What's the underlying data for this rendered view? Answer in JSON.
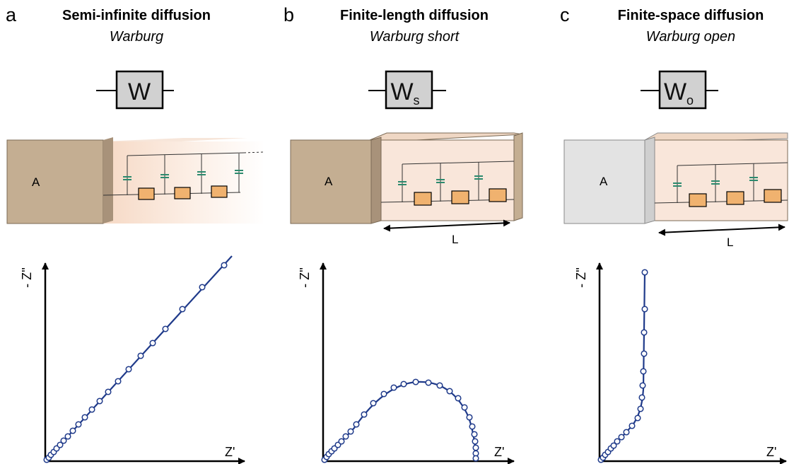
{
  "panels": [
    {
      "letter": "a",
      "title": "Semi-infinite diffusion",
      "subtitle": "Warburg",
      "element": {
        "symbol": "W",
        "subscript": ""
      },
      "block": {
        "electrode_label": "A",
        "electrode_color": "#c4ae92",
        "electrolyte_color": "#f9e6da"
      },
      "plot": {
        "ylabel": "- Z''",
        "xlabel": "Z'",
        "shape": "straight 45-degree line"
      }
    },
    {
      "letter": "b",
      "title": "Finite-length diffusion",
      "subtitle": "Warburg short",
      "element": {
        "symbol": "W",
        "subscript": "s"
      },
      "block": {
        "electrode_label": "A",
        "length_label": "L",
        "electrode_color": "#c4ae92",
        "electrolyte_color": "#f9e6da",
        "end_wall": "blocking"
      },
      "plot": {
        "ylabel": "- Z''",
        "xlabel": "Z'",
        "shape": "45-degree line closing into a semicircle"
      }
    },
    {
      "letter": "c",
      "title": "Finite-space diffusion",
      "subtitle": "Warburg open",
      "element": {
        "symbol": "W",
        "subscript": "o"
      },
      "block": {
        "electrode_label": "A",
        "length_label": "L",
        "electrode_color": "#e3e3e3",
        "electrolyte_color": "#f9e6da",
        "end_wall": "reflective"
      },
      "plot": {
        "ylabel": "- Z''",
        "xlabel": "Z'",
        "shape": "45-degree line turning vertical"
      }
    }
  ],
  "colors": {
    "symbol_box": "#d1d1d1",
    "resistor": "#f0b26f",
    "capacitor": "#2c8a6e",
    "curve": "#1f3a8a"
  }
}
